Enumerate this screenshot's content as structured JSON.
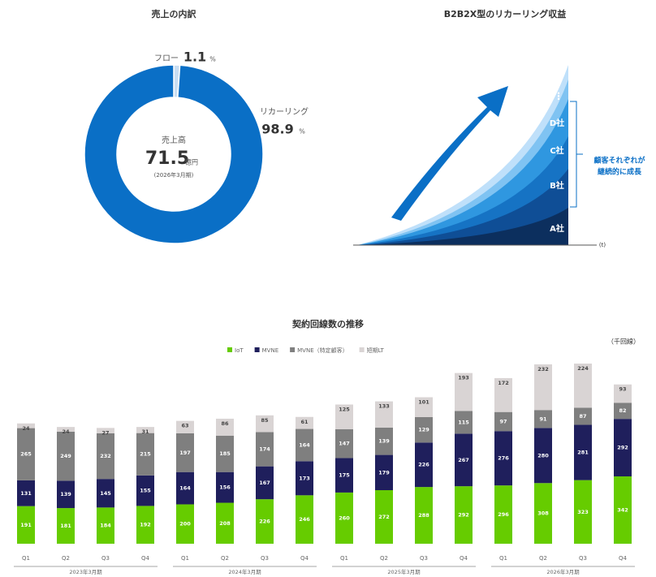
{
  "chart_data": [
    {
      "type": "donut",
      "title": "売上の内訳",
      "categories": [
        "フロー",
        "リカーリング"
      ],
      "values": [
        1.1,
        98.9
      ],
      "unit": "%",
      "colors": [
        "#c9def2",
        "#0a6fc6"
      ],
      "center_label": "売上高",
      "center_value": 71.5,
      "center_unit": "億円",
      "center_note": "(2026年3月期)"
    },
    {
      "type": "stacked-bar",
      "title": "契約回線数の推移",
      "unit_label": "（千回線）",
      "categories": [
        "Q1",
        "Q2",
        "Q3",
        "Q4",
        "Q1",
        "Q2",
        "Q3",
        "Q4",
        "Q1",
        "Q2",
        "Q3",
        "Q4",
        "Q1",
        "Q2",
        "Q3",
        "Q4"
      ],
      "groups": [
        "2023年3月期",
        "2024年3月期",
        "2025年3月期",
        "2026年3月期"
      ],
      "series": [
        {
          "name": "IoT",
          "color": "#66cc00",
          "values": [
            191,
            181,
            184,
            192,
            200,
            208,
            226,
            246,
            260,
            272,
            288,
            292,
            296,
            308,
            323,
            342
          ]
        },
        {
          "name": "MVNE",
          "color": "#1f1f5c",
          "values": [
            131,
            139,
            145,
            155,
            164,
            156,
            167,
            173,
            175,
            179,
            226,
            267,
            276,
            280,
            281,
            292
          ]
        },
        {
          "name": "MVNE（特定顧客）",
          "color": "#7f7f7f",
          "values": [
            265,
            249,
            232,
            215,
            197,
            185,
            174,
            164,
            147,
            139,
            129,
            115,
            97,
            91,
            87,
            82
          ]
        },
        {
          "name": "短期LT",
          "color": "#d9d4d4",
          "values": [
            24,
            24,
            27,
            31,
            63,
            86,
            85,
            61,
            125,
            133,
            101,
            193,
            172,
            232,
            224,
            93
          ]
        }
      ]
    }
  ],
  "diagram": {
    "title": "B2B2X型のリカーリング収益",
    "layers": [
      "A社",
      "B社",
      "C社",
      "D社",
      "⋮"
    ],
    "callout": [
      "顧客それぞれが",
      "継続的に成長"
    ],
    "axis_label": "(t)"
  }
}
